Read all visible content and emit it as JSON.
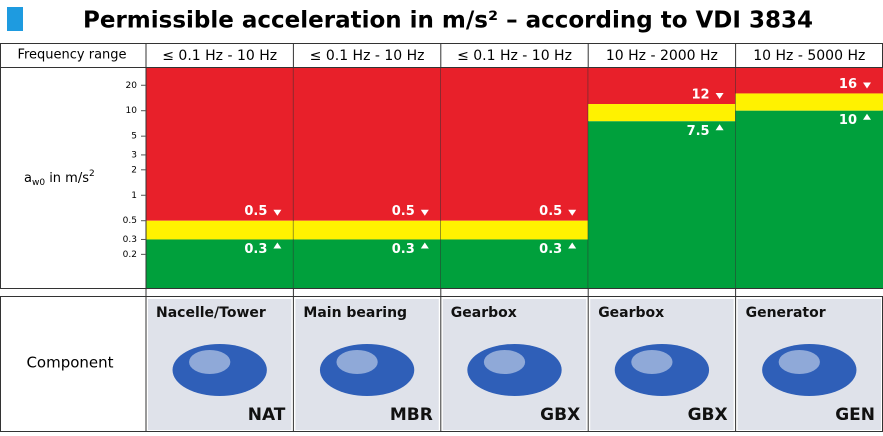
{
  "title": "Permissible acceleration in m/s² – according to VDI 3834",
  "frequency_label": "Frequency range",
  "component_label": "Component",
  "y_axis": {
    "label": {
      "main": "a",
      "sub": "w0",
      "rest": " in m/s",
      "sup": "2"
    },
    "scale": "log",
    "ylim": [
      0.08,
      32
    ],
    "yticks": [
      20,
      10,
      5,
      3,
      2,
      1,
      0.5,
      0.3,
      0.2
    ]
  },
  "colors": {
    "red": "#e8202a",
    "yellow": "#fff200",
    "green": "#00a03c"
  },
  "columns": [
    {
      "frequency": "≤ 0.1 Hz - 10 Hz",
      "lower": 0.3,
      "upper": 0.5,
      "component": "Nacelle/Tower",
      "code": "NAT"
    },
    {
      "frequency": "≤ 0.1 Hz - 10 Hz",
      "lower": 0.3,
      "upper": 0.5,
      "component": "Main bearing",
      "code": "MBR"
    },
    {
      "frequency": "≤ 0.1 Hz - 10 Hz",
      "lower": 0.3,
      "upper": 0.5,
      "component": "Gearbox",
      "code": "GBX"
    },
    {
      "frequency": "10 Hz - 2000 Hz",
      "lower": 7.5,
      "upper": 12,
      "component": "Gearbox",
      "code": "GBX"
    },
    {
      "frequency": "10 Hz - 5000 Hz",
      "lower": 10,
      "upper": 16,
      "component": "Generator",
      "code": "GEN"
    }
  ]
}
